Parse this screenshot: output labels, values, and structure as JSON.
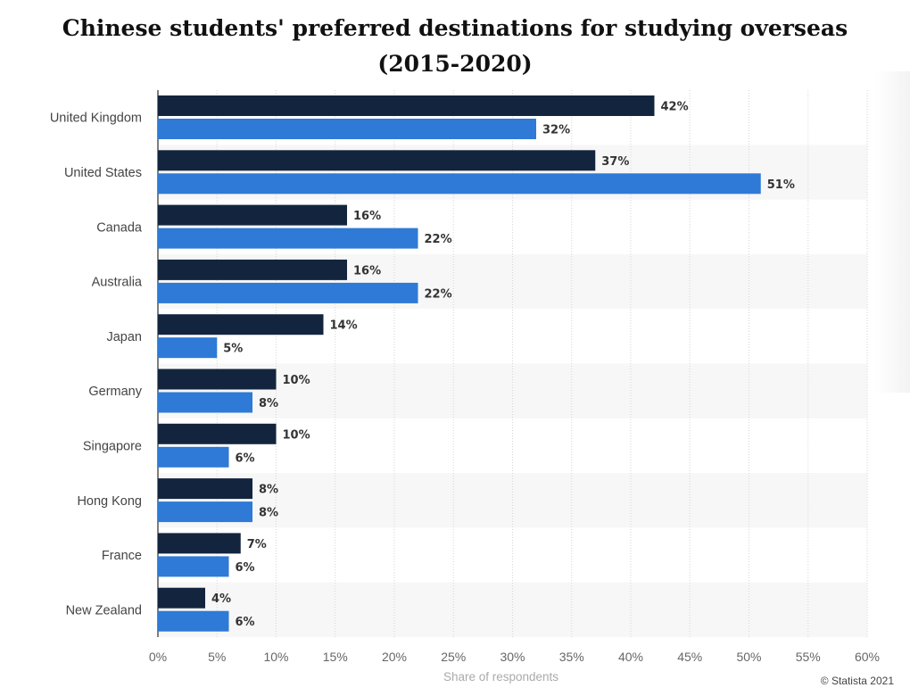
{
  "title": {
    "line1": "Chinese students' preferred destinations for studying overseas",
    "line2": "(2015-2020)"
  },
  "credit": "© Statista 2021",
  "colors": {
    "series_dark": "#13253e",
    "series_blue": "#2e7ad6",
    "band": "#f7f7f7",
    "grid": "#d6d6d6",
    "axis_text": "#666666",
    "label_text": "#333333"
  },
  "chart_data": {
    "type": "bar",
    "orientation": "horizontal",
    "categories": [
      "United Kingdom",
      "United States",
      "Canada",
      "Australia",
      "Japan",
      "Germany",
      "Singapore",
      "Hong Kong",
      "France",
      "New Zealand"
    ],
    "series": [
      {
        "values": [
          42,
          37,
          16,
          16,
          14,
          10,
          10,
          8,
          7,
          4
        ]
      },
      {
        "values": [
          32,
          51,
          22,
          22,
          5,
          8,
          6,
          8,
          6,
          6
        ]
      }
    ],
    "value_labels": [
      [
        "42%",
        "37%",
        "16%",
        "16%",
        "14%",
        "10%",
        "10%",
        "8%",
        "7%",
        "4%"
      ],
      [
        "32%",
        "51%",
        "22%",
        "22%",
        "5%",
        "8%",
        "6%",
        "8%",
        "6%",
        "6%"
      ]
    ],
    "xlabel": "Share of respondents",
    "ylabel": "",
    "xlim": [
      0,
      60
    ],
    "xticks": [
      0,
      5,
      10,
      15,
      20,
      25,
      30,
      35,
      40,
      45,
      50,
      55,
      60
    ],
    "xtick_labels": [
      "0%",
      "5%",
      "10%",
      "15%",
      "20%",
      "25%",
      "30%",
      "35%",
      "40%",
      "45%",
      "50%",
      "55%",
      "60%"
    ],
    "grid": true,
    "legend": "none"
  }
}
